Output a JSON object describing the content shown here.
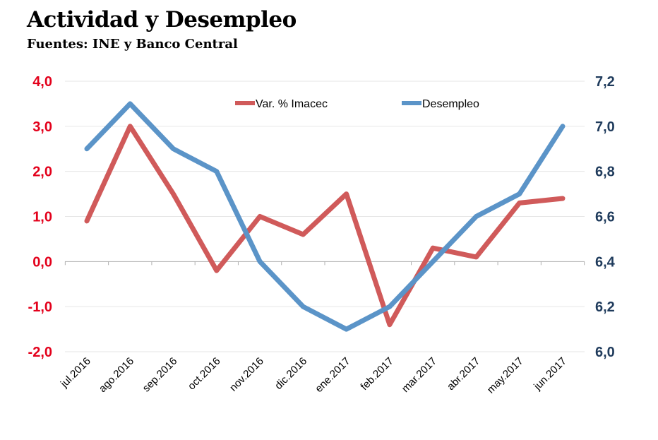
{
  "chart_data": {
    "type": "line",
    "title": "Actividad y Desempleo",
    "subtitle": "Fuentes: INE y Banco Central",
    "categories": [
      "jul.2016",
      "ago.2016",
      "sep.2016",
      "oct.2016",
      "nov.2016",
      "dic.2016",
      "ene.2017",
      "feb.2017",
      "mar.2017",
      "abr.2017",
      "may.2017",
      "jun.2017"
    ],
    "series": [
      {
        "name": "Var. % Imacec",
        "axis": "left",
        "color": "#d05a5a",
        "values": [
          0.9,
          3.0,
          1.5,
          -0.2,
          1.0,
          0.6,
          1.5,
          -1.4,
          0.3,
          0.1,
          1.3,
          1.4
        ]
      },
      {
        "name": "Desempleo",
        "axis": "right",
        "color": "#5b94c8",
        "values": [
          6.9,
          7.1,
          6.9,
          6.8,
          6.4,
          6.2,
          6.1,
          6.2,
          6.4,
          6.6,
          6.7,
          7.0
        ]
      }
    ],
    "y_left": {
      "range": [
        -2.0,
        4.0
      ],
      "ticks": [
        "-2,0",
        "-1,0",
        "0,0",
        "1,0",
        "2,0",
        "3,0",
        "4,0"
      ],
      "tick_values": [
        -2,
        -1,
        0,
        1,
        2,
        3,
        4
      ],
      "color": "#e3001b"
    },
    "y_right": {
      "range": [
        6.0,
        7.2
      ],
      "ticks": [
        "6,0",
        "6,2",
        "6,4",
        "6,6",
        "6,8",
        "7,0",
        "7,2"
      ],
      "tick_values": [
        6.0,
        6.2,
        6.4,
        6.6,
        6.8,
        7.0,
        7.2
      ],
      "color": "#1f3b5c"
    },
    "grid": true,
    "legend": "top"
  }
}
